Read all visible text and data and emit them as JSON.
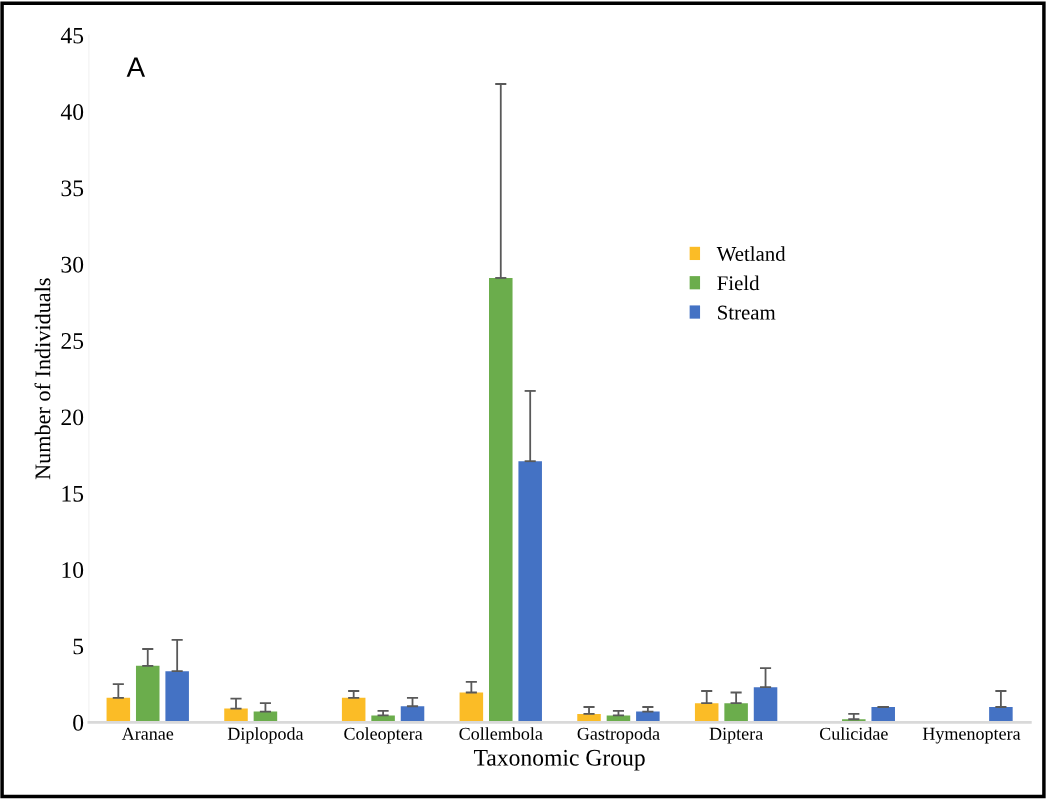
{
  "chart_data": {
    "type": "bar",
    "xlabel": "Taxonomic Group",
    "ylabel": "Number of Individuals",
    "annotations": [
      "A"
    ],
    "categories": [
      "Aranae",
      "Diplopoda",
      "Coleoptera",
      "Collembola",
      "Gastropoda",
      "Diptera",
      "Culicidae",
      "Hymenoptera"
    ],
    "series": [
      {
        "name": "Wetland",
        "color": "#fbbc26",
        "values": [
          1.6,
          0.9,
          1.6,
          1.95,
          0.55,
          1.25,
          null,
          null
        ],
        "errors": [
          0.9,
          0.65,
          0.45,
          0.7,
          0.45,
          0.8,
          null,
          null
        ]
      },
      {
        "name": "Field",
        "color": "#6bad4c",
        "values": [
          3.7,
          0.7,
          0.45,
          29.1,
          0.45,
          1.25,
          0.2,
          null
        ],
        "errors": [
          1.1,
          0.55,
          0.3,
          12.7,
          0.3,
          0.7,
          0.35,
          null
        ]
      },
      {
        "name": "Stream",
        "color": "#4472c4",
        "values": [
          3.35,
          null,
          1.05,
          17.1,
          0.7,
          2.3,
          1.0,
          1.0
        ],
        "errors": [
          2.05,
          null,
          0.55,
          4.6,
          0.3,
          1.25,
          0.0,
          1.05
        ]
      }
    ],
    "ylim": [
      0,
      45
    ],
    "yticks": [
      0,
      5,
      10,
      15,
      20,
      25,
      30,
      35,
      40,
      45
    ],
    "grid": false,
    "legend": "top right"
  }
}
